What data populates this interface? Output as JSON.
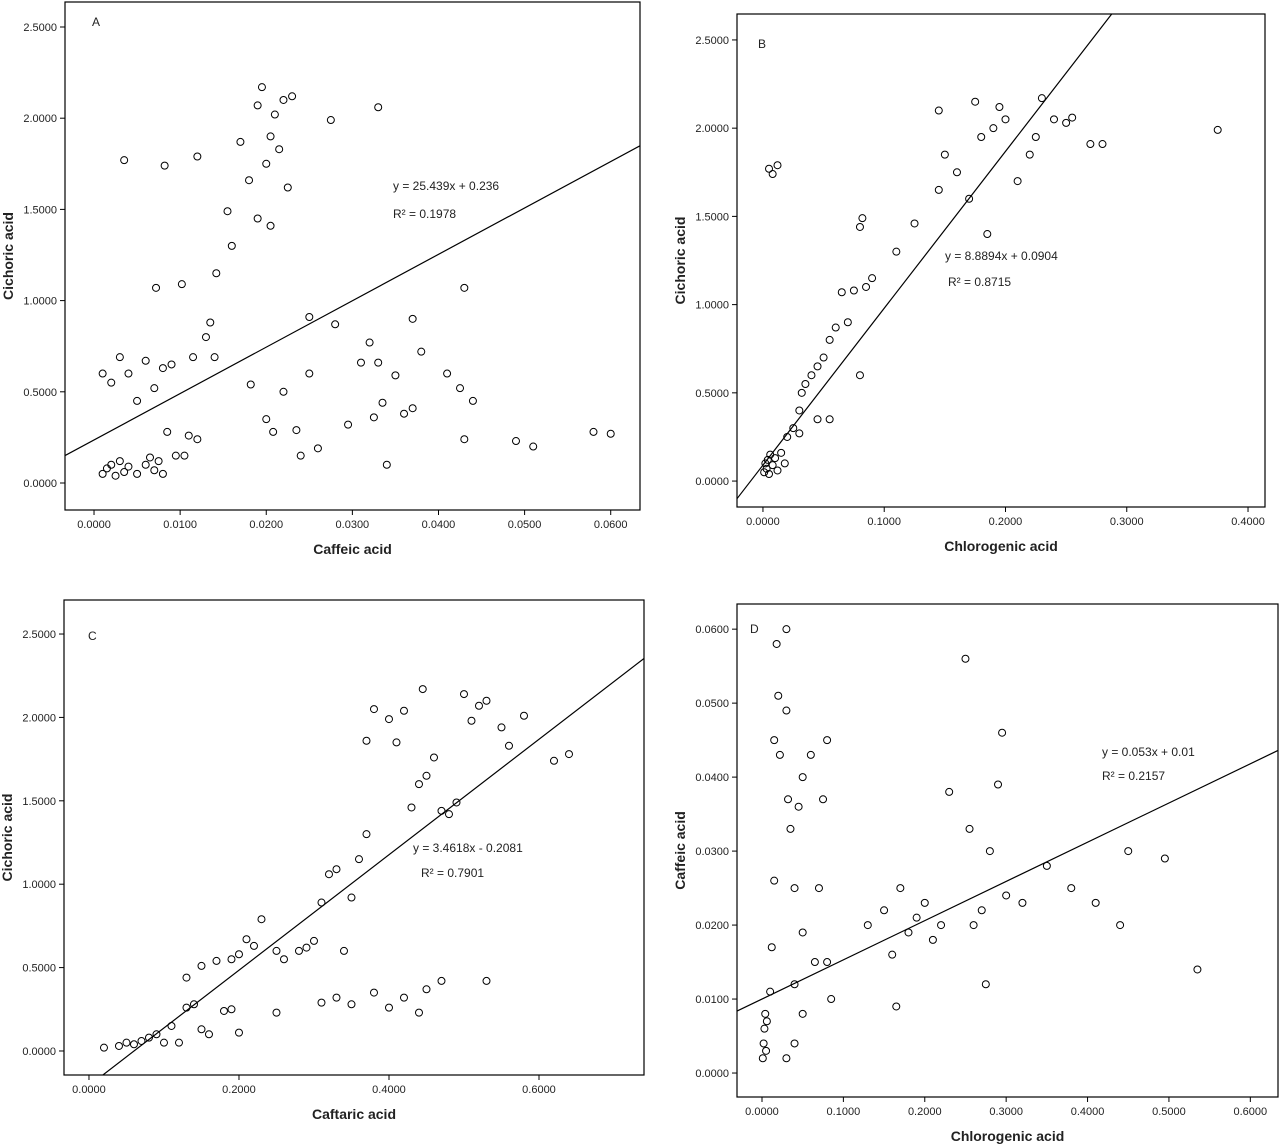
{
  "chart_data": [
    {
      "type": "scatter",
      "panel": "A",
      "x_label": "Caffeic acid",
      "y_label": "Cichoric acid",
      "xlim": [
        -0.00337,
        0.0634
      ],
      "ylim": [
        -0.148,
        2.637
      ],
      "xticks": [
        {
          "value": 0,
          "label": "0.0000"
        },
        {
          "value": 0.01,
          "label": "0.0100"
        },
        {
          "value": 0.02,
          "label": "0.0200"
        },
        {
          "value": 0.03,
          "label": "0.0300"
        },
        {
          "value": 0.04,
          "label": "0.0400"
        },
        {
          "value": 0.05,
          "label": "0.0500"
        },
        {
          "value": 0.06,
          "label": "0.0600"
        }
      ],
      "yticks": [
        {
          "value": 0,
          "label": "0.0000"
        },
        {
          "value": 0.5,
          "label": "0.5000"
        },
        {
          "value": 1,
          "label": "1.0000"
        },
        {
          "value": 1.5,
          "label": "1.5000"
        },
        {
          "value": 2,
          "label": "2.0000"
        },
        {
          "value": 2.5,
          "label": "2.5000"
        }
      ],
      "trendline": {
        "label": "y = 25.439x + 0.236",
        "r2_label": "R² = 0.1978",
        "slope": 25.439,
        "intercept": 0.236
      },
      "series": [
        {
          "color": "#000000",
          "x": [
            0.001,
            0.0015,
            0.002,
            0.0025,
            0.003,
            0.0035,
            0.004,
            0.005,
            0.006,
            0.0065,
            0.007,
            0.0075,
            0.008,
            0.0095,
            0.0105,
            0.0085,
            0.011,
            0.012,
            0.001,
            0.002,
            0.003,
            0.004,
            0.005,
            0.006,
            0.007,
            0.008,
            0.009,
            0.0115,
            0.013,
            0.0135,
            0.014,
            0.0035,
            0.0082,
            0.0072,
            0.0102,
            0.012,
            0.0142,
            0.0155,
            0.016,
            0.017,
            0.018,
            0.019,
            0.019,
            0.0195,
            0.02,
            0.0205,
            0.021,
            0.0215,
            0.022,
            0.0225,
            0.023,
            0.0205,
            0.0275,
            0.033,
            0.0182,
            0.02,
            0.0208,
            0.022,
            0.0235,
            0.024,
            0.025,
            0.025,
            0.026,
            0.028,
            0.0295,
            0.031,
            0.032,
            0.0325,
            0.033,
            0.0335,
            0.034,
            0.035,
            0.036,
            0.037,
            0.037,
            0.038,
            0.041,
            0.0425,
            0.043,
            0.043,
            0.044,
            0.049,
            0.051,
            0.058,
            0.06
          ],
          "values": [
            0.05,
            0.08,
            0.1,
            0.04,
            0.12,
            0.06,
            0.09,
            0.05,
            0.1,
            0.14,
            0.07,
            0.12,
            0.05,
            0.15,
            0.15,
            0.28,
            0.26,
            0.24,
            0.6,
            0.55,
            0.69,
            0.6,
            0.45,
            0.67,
            0.52,
            0.63,
            0.65,
            0.69,
            0.8,
            0.88,
            0.69,
            1.77,
            1.74,
            1.07,
            1.09,
            1.79,
            1.15,
            1.49,
            1.3,
            1.87,
            1.66,
            1.45,
            2.07,
            2.17,
            1.75,
            1.9,
            2.02,
            1.83,
            2.1,
            1.62,
            2.12,
            1.41,
            1.99,
            2.06,
            0.54,
            0.35,
            0.28,
            0.5,
            0.29,
            0.15,
            0.91,
            0.6,
            0.19,
            0.87,
            0.32,
            0.66,
            0.77,
            0.36,
            0.66,
            0.44,
            0.1,
            0.59,
            0.38,
            0.9,
            0.41,
            0.72,
            0.6,
            0.52,
            1.07,
            0.24,
            0.45,
            0.23,
            0.2,
            0.28,
            0.27
          ]
        }
      ]
    },
    {
      "type": "scatter",
      "panel": "B",
      "x_label": "Chlorogenic acid",
      "y_label": "Cichoric acid",
      "xlim": [
        -0.0214,
        0.414
      ],
      "ylim": [
        -0.147,
        2.647
      ],
      "xticks": [
        {
          "value": 0,
          "label": "0.0000"
        },
        {
          "value": 0.1,
          "label": "0.1000"
        },
        {
          "value": 0.2,
          "label": "0.2000"
        },
        {
          "value": 0.3,
          "label": "0.3000"
        },
        {
          "value": 0.4,
          "label": "0.4000"
        }
      ],
      "yticks": [
        {
          "value": 0,
          "label": "0.0000"
        },
        {
          "value": 0.5,
          "label": "0.5000"
        },
        {
          "value": 1,
          "label": "1.0000"
        },
        {
          "value": 1.5,
          "label": "1.5000"
        },
        {
          "value": 2,
          "label": "2.0000"
        },
        {
          "value": 2.5,
          "label": "2.5000"
        }
      ],
      "trendline": {
        "label": "y = 8.8894x + 0.0904",
        "r2_label": "R² = 0.8715",
        "slope": 8.8894,
        "intercept": 0.0904
      },
      "series": [
        {
          "color": "#000000",
          "x": [
            0.001,
            0.002,
            0.003,
            0.004,
            0.005,
            0.006,
            0.008,
            0.01,
            0.012,
            0.015,
            0.018,
            0.02,
            0.025,
            0.03,
            0.032,
            0.035,
            0.04,
            0.045,
            0.05,
            0.055,
            0.06,
            0.065,
            0.07,
            0.075,
            0.08,
            0.082,
            0.085,
            0.08,
            0.055,
            0.045,
            0.03,
            0.09,
            0.11,
            0.125,
            0.005,
            0.008,
            0.012,
            0.145,
            0.145,
            0.15,
            0.16,
            0.17,
            0.175,
            0.18,
            0.185,
            0.19,
            0.195,
            0.2,
            0.21,
            0.22,
            0.225,
            0.23,
            0.24,
            0.25,
            0.255,
            0.27,
            0.28,
            0.375
          ],
          "values": [
            0.05,
            0.1,
            0.07,
            0.12,
            0.04,
            0.15,
            0.09,
            0.13,
            0.06,
            0.16,
            0.1,
            0.25,
            0.3,
            0.4,
            0.5,
            0.55,
            0.6,
            0.65,
            0.7,
            0.8,
            0.87,
            1.07,
            0.9,
            1.08,
            1.44,
            1.49,
            1.1,
            0.6,
            0.35,
            0.35,
            0.27,
            1.15,
            1.3,
            1.46,
            1.77,
            1.74,
            1.79,
            2.1,
            1.65,
            1.85,
            1.75,
            1.6,
            2.15,
            1.95,
            1.4,
            2,
            2.12,
            2.05,
            1.7,
            1.85,
            1.95,
            2.17,
            2.05,
            2.03,
            2.06,
            1.91,
            1.91,
            1.99
          ]
        }
      ]
    },
    {
      "type": "scatter",
      "panel": "C",
      "x_label": "Caftaric acid",
      "y_label": "Cichoric acid",
      "xlim": [
        -0.0333,
        0.74
      ],
      "ylim": [
        -0.144,
        2.704
      ],
      "xticks": [
        {
          "value": 0,
          "label": "0.0000"
        },
        {
          "value": 0.2,
          "label": "0.2000"
        },
        {
          "value": 0.4,
          "label": "0.4000"
        },
        {
          "value": 0.6,
          "label": "0.6000"
        }
      ],
      "yticks": [
        {
          "value": 0,
          "label": "0.0000"
        },
        {
          "value": 0.5,
          "label": "0.5000"
        },
        {
          "value": 1,
          "label": "1.0000"
        },
        {
          "value": 1.5,
          "label": "1.5000"
        },
        {
          "value": 2,
          "label": "2.0000"
        },
        {
          "value": 2.5,
          "label": "2.5000"
        }
      ],
      "trendline": {
        "label": "y = 3.4618x - 0.2081",
        "r2_label": "R² = 0.7901",
        "slope": 3.4618,
        "intercept": -0.2081
      },
      "series": [
        {
          "color": "#000000",
          "x": [
            0.02,
            0.04,
            0.05,
            0.06,
            0.07,
            0.08,
            0.09,
            0.1,
            0.11,
            0.12,
            0.13,
            0.14,
            0.15,
            0.16,
            0.18,
            0.19,
            0.2,
            0.13,
            0.15,
            0.17,
            0.19,
            0.2,
            0.21,
            0.22,
            0.23,
            0.25,
            0.26,
            0.28,
            0.29,
            0.3,
            0.31,
            0.32,
            0.33,
            0.35,
            0.36,
            0.34,
            0.37,
            0.37,
            0.38,
            0.4,
            0.41,
            0.42,
            0.43,
            0.44,
            0.45,
            0.445,
            0.46,
            0.47,
            0.48,
            0.49,
            0.5,
            0.51,
            0.52,
            0.53,
            0.55,
            0.56,
            0.58,
            0.62,
            0.64,
            0.25,
            0.31,
            0.33,
            0.35,
            0.38,
            0.4,
            0.42,
            0.44,
            0.45,
            0.47,
            0.53
          ],
          "values": [
            0.02,
            0.03,
            0.05,
            0.04,
            0.06,
            0.08,
            0.1,
            0.05,
            0.15,
            0.05,
            0.26,
            0.28,
            0.13,
            0.1,
            0.24,
            0.25,
            0.11,
            0.44,
            0.51,
            0.54,
            0.55,
            0.58,
            0.67,
            0.63,
            0.79,
            0.6,
            0.55,
            0.6,
            0.62,
            0.66,
            0.89,
            1.06,
            1.09,
            0.92,
            1.15,
            0.6,
            1.3,
            1.86,
            2.05,
            1.99,
            1.85,
            2.04,
            1.46,
            1.6,
            1.65,
            2.17,
            1.76,
            1.44,
            1.42,
            1.49,
            2.14,
            1.98,
            2.07,
            2.1,
            1.94,
            1.83,
            2.01,
            1.74,
            1.78,
            0.23,
            0.29,
            0.32,
            0.28,
            0.35,
            0.26,
            0.32,
            0.23,
            0.37,
            0.42,
            0.42
          ]
        }
      ]
    },
    {
      "type": "scatter",
      "panel": "D",
      "x_label": "Chlorogenic acid",
      "y_label": "Caffeic acid",
      "xlim": [
        -0.0307,
        0.634
      ],
      "ylim": [
        -0.00324,
        0.0634
      ],
      "xticks": [
        {
          "value": 0,
          "label": "0.0000"
        },
        {
          "value": 0.1,
          "label": "0.1000"
        },
        {
          "value": 0.2,
          "label": "0.2000"
        },
        {
          "value": 0.3,
          "label": "0.3000"
        },
        {
          "value": 0.4,
          "label": "0.4000"
        },
        {
          "value": 0.5,
          "label": "0.5000"
        },
        {
          "value": 0.6,
          "label": "0.6000"
        }
      ],
      "yticks": [
        {
          "value": 0,
          "label": "0.0000"
        },
        {
          "value": 0.01,
          "label": "0.0100"
        },
        {
          "value": 0.02,
          "label": "0.0200"
        },
        {
          "value": 0.03,
          "label": "0.0300"
        },
        {
          "value": 0.04,
          "label": "0.0400"
        },
        {
          "value": 0.05,
          "label": "0.0500"
        },
        {
          "value": 0.06,
          "label": "0.0600"
        }
      ],
      "trendline": {
        "label": "y = 0.053x + 0.01",
        "r2_label": "R² = 0.2157",
        "slope": 0.053,
        "intercept": 0.01
      },
      "series": [
        {
          "color": "#000000",
          "x": [
            0.001,
            0.002,
            0.003,
            0.004,
            0.005,
            0.006,
            0.01,
            0.012,
            0.015,
            0.015,
            0.018,
            0.02,
            0.022,
            0.03,
            0.03,
            0.032,
            0.035,
            0.04,
            0.04,
            0.045,
            0.05,
            0.05,
            0.06,
            0.065,
            0.07,
            0.075,
            0.08,
            0.08,
            0.085,
            0.03,
            0.04,
            0.05,
            0.13,
            0.15,
            0.16,
            0.165,
            0.17,
            0.18,
            0.19,
            0.2,
            0.21,
            0.22,
            0.23,
            0.25,
            0.255,
            0.26,
            0.27,
            0.275,
            0.28,
            0.29,
            0.295,
            0.3,
            0.32,
            0.35,
            0.38,
            0.41,
            0.44,
            0.45,
            0.495,
            0.535
          ],
          "values": [
            0.002,
            0.004,
            0.006,
            0.008,
            0.003,
            0.007,
            0.011,
            0.017,
            0.026,
            0.045,
            0.058,
            0.051,
            0.043,
            0.06,
            0.049,
            0.037,
            0.033,
            0.025,
            0.012,
            0.036,
            0.04,
            0.019,
            0.043,
            0.015,
            0.025,
            0.037,
            0.045,
            0.015,
            0.01,
            0.002,
            0.004,
            0.008,
            0.02,
            0.022,
            0.016,
            0.009,
            0.025,
            0.019,
            0.021,
            0.023,
            0.018,
            0.02,
            0.038,
            0.056,
            0.033,
            0.02,
            0.022,
            0.012,
            0.03,
            0.039,
            0.046,
            0.024,
            0.023,
            0.028,
            0.025,
            0.023,
            0.02,
            0.03,
            0.029,
            0.014
          ]
        }
      ]
    }
  ]
}
